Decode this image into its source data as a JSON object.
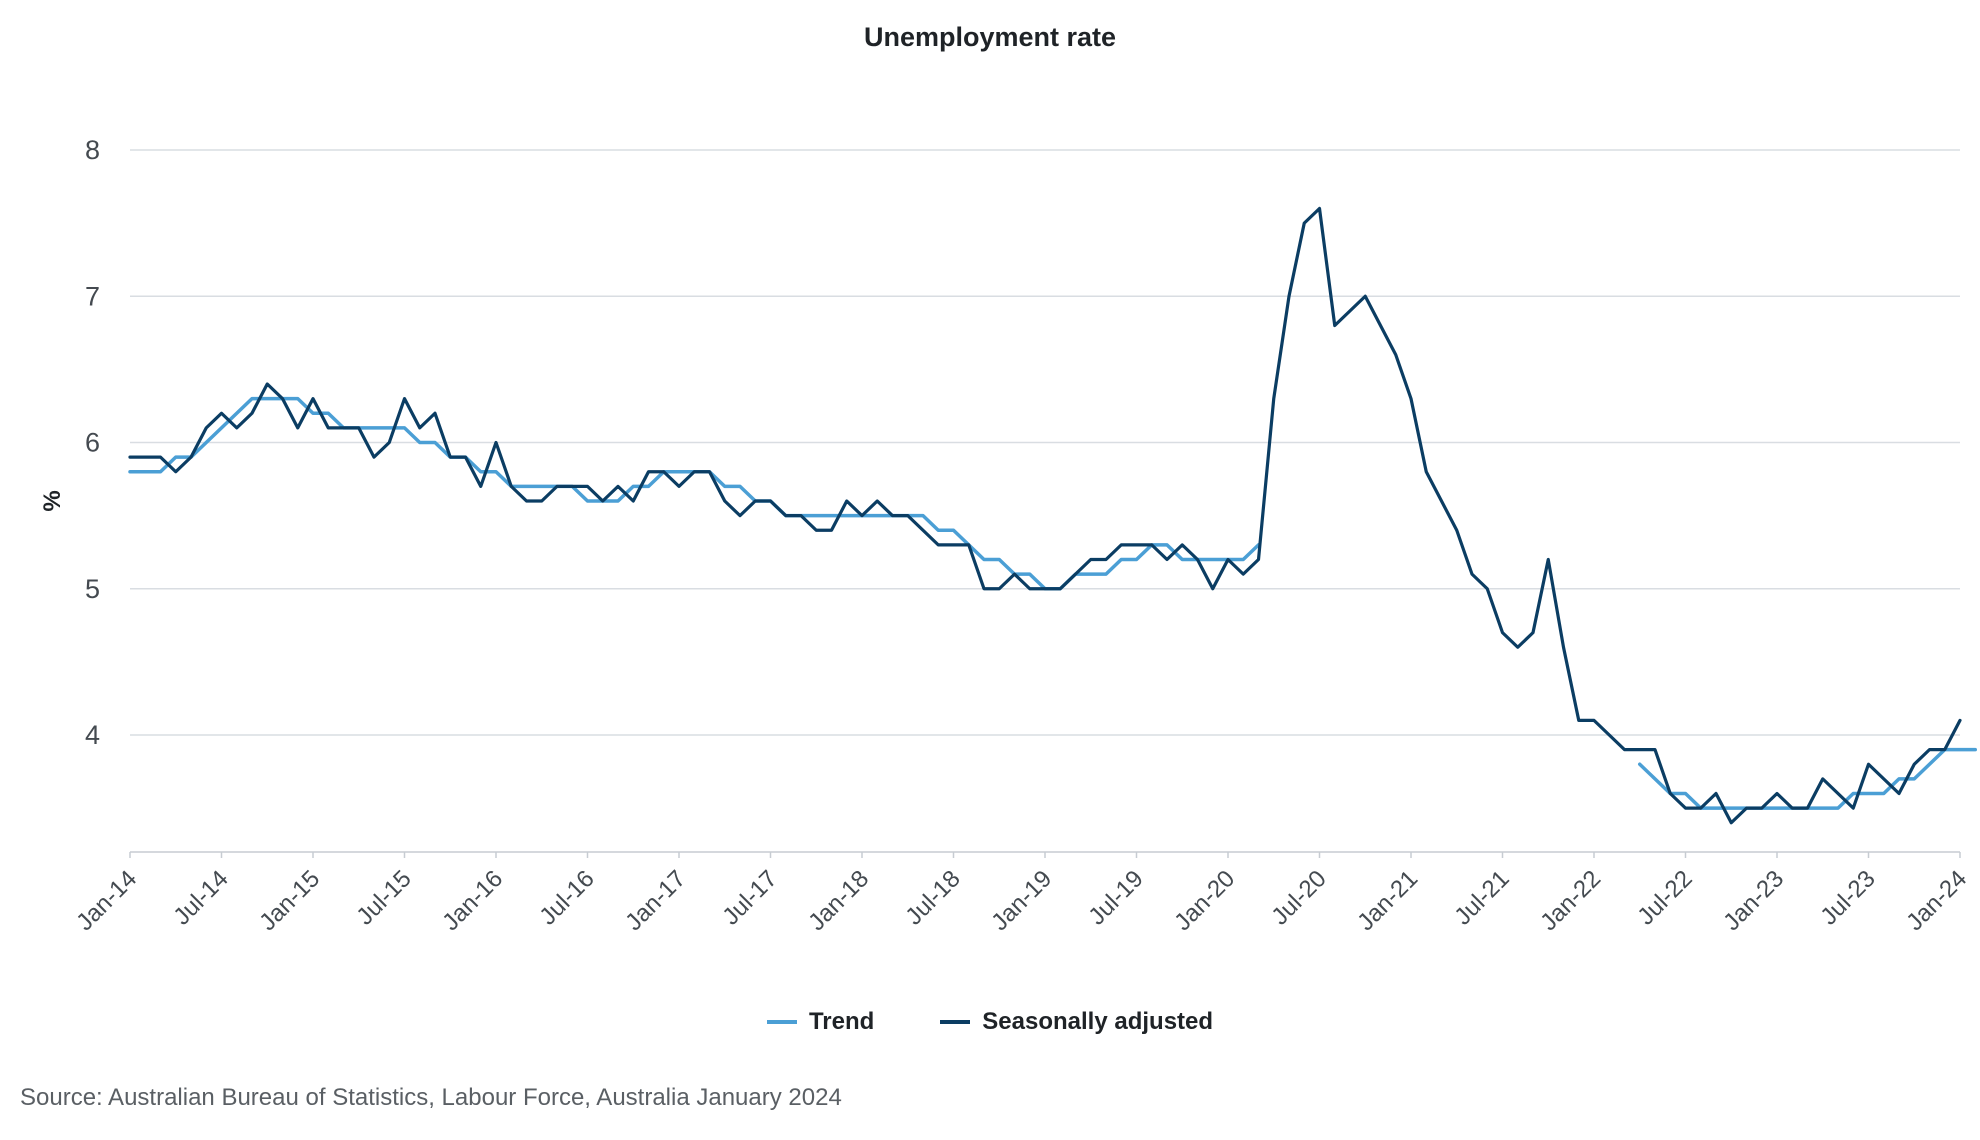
{
  "chart_data": {
    "type": "line",
    "title": "Unemployment rate",
    "xlabel": "",
    "ylabel": "%",
    "ylim": [
      3.2,
      8.0
    ],
    "yticks": [
      4,
      5,
      6,
      7,
      8
    ],
    "start_month": "Jan-14",
    "xtick_labels": [
      "Jan-14",
      "Jul-14",
      "Jan-15",
      "Jul-15",
      "Jan-16",
      "Jul-16",
      "Jan-17",
      "Jul-17",
      "Jan-18",
      "Jul-18",
      "Jan-19",
      "Jul-19",
      "Jan-20",
      "Jul-20",
      "Jan-21",
      "Jul-21",
      "Jan-22",
      "Jul-22",
      "Jan-23",
      "Jul-23",
      "Jan-24"
    ],
    "grid": true,
    "legend_position": "bottom-center",
    "series": [
      {
        "name": "Trend",
        "color": "#4b9fd5",
        "values": [
          5.8,
          5.8,
          5.8,
          5.9,
          5.9,
          6.0,
          6.1,
          6.2,
          6.3,
          6.3,
          6.3,
          6.3,
          6.2,
          6.2,
          6.1,
          6.1,
          6.1,
          6.1,
          6.1,
          6.0,
          6.0,
          5.9,
          5.9,
          5.8,
          5.8,
          5.7,
          5.7,
          5.7,
          5.7,
          5.7,
          5.6,
          5.6,
          5.6,
          5.7,
          5.7,
          5.8,
          5.8,
          5.8,
          5.8,
          5.7,
          5.7,
          5.6,
          5.6,
          5.5,
          5.5,
          5.5,
          5.5,
          5.5,
          5.5,
          5.5,
          5.5,
          5.5,
          5.5,
          5.4,
          5.4,
          5.3,
          5.2,
          5.2,
          5.1,
          5.1,
          5.0,
          5.0,
          5.1,
          5.1,
          5.1,
          5.2,
          5.2,
          5.3,
          5.3,
          5.2,
          5.2,
          5.2,
          5.2,
          5.2,
          5.3,
          null,
          null,
          null,
          null,
          null,
          null,
          null,
          null,
          null,
          null,
          null,
          null,
          null,
          null,
          null,
          null,
          null,
          null,
          null,
          null,
          null,
          null,
          null,
          null,
          3.8,
          3.7,
          3.6,
          3.6,
          3.5,
          3.5,
          3.5,
          3.5,
          3.5,
          3.5,
          3.5,
          3.5,
          3.5,
          3.5,
          3.6,
          3.6,
          3.6,
          3.7,
          3.7,
          3.8,
          3.9,
          3.9,
          3.9
        ]
      },
      {
        "name": "Seasonally adjusted",
        "color": "#0b3d63",
        "values": [
          5.9,
          5.9,
          5.9,
          5.8,
          5.9,
          6.1,
          6.2,
          6.1,
          6.2,
          6.4,
          6.3,
          6.1,
          6.3,
          6.1,
          6.1,
          6.1,
          5.9,
          6.0,
          6.3,
          6.1,
          6.2,
          5.9,
          5.9,
          5.7,
          6.0,
          5.7,
          5.6,
          5.6,
          5.7,
          5.7,
          5.7,
          5.6,
          5.7,
          5.6,
          5.8,
          5.8,
          5.7,
          5.8,
          5.8,
          5.6,
          5.5,
          5.6,
          5.6,
          5.5,
          5.5,
          5.4,
          5.4,
          5.6,
          5.5,
          5.6,
          5.5,
          5.5,
          5.4,
          5.3,
          5.3,
          5.3,
          5.0,
          5.0,
          5.1,
          5.0,
          5.0,
          5.0,
          5.1,
          5.2,
          5.2,
          5.3,
          5.3,
          5.3,
          5.2,
          5.3,
          5.2,
          5.0,
          5.2,
          5.1,
          5.2,
          6.3,
          7.0,
          7.5,
          7.6,
          6.8,
          6.9,
          7.0,
          6.8,
          6.6,
          6.3,
          5.8,
          5.6,
          5.4,
          5.1,
          5.0,
          4.7,
          4.6,
          4.7,
          5.2,
          4.6,
          4.1,
          4.1,
          4.0,
          3.9,
          3.9,
          3.9,
          3.6,
          3.5,
          3.5,
          3.6,
          3.4,
          3.5,
          3.5,
          3.6,
          3.5,
          3.5,
          3.7,
          3.6,
          3.5,
          3.8,
          3.7,
          3.6,
          3.8,
          3.9,
          3.9,
          4.1
        ]
      }
    ]
  },
  "legend": {
    "trend_label": "Trend",
    "sa_label": "Seasonally adjusted"
  },
  "source": "Source: Australian Bureau of Statistics, Labour Force, Australia January 2024"
}
